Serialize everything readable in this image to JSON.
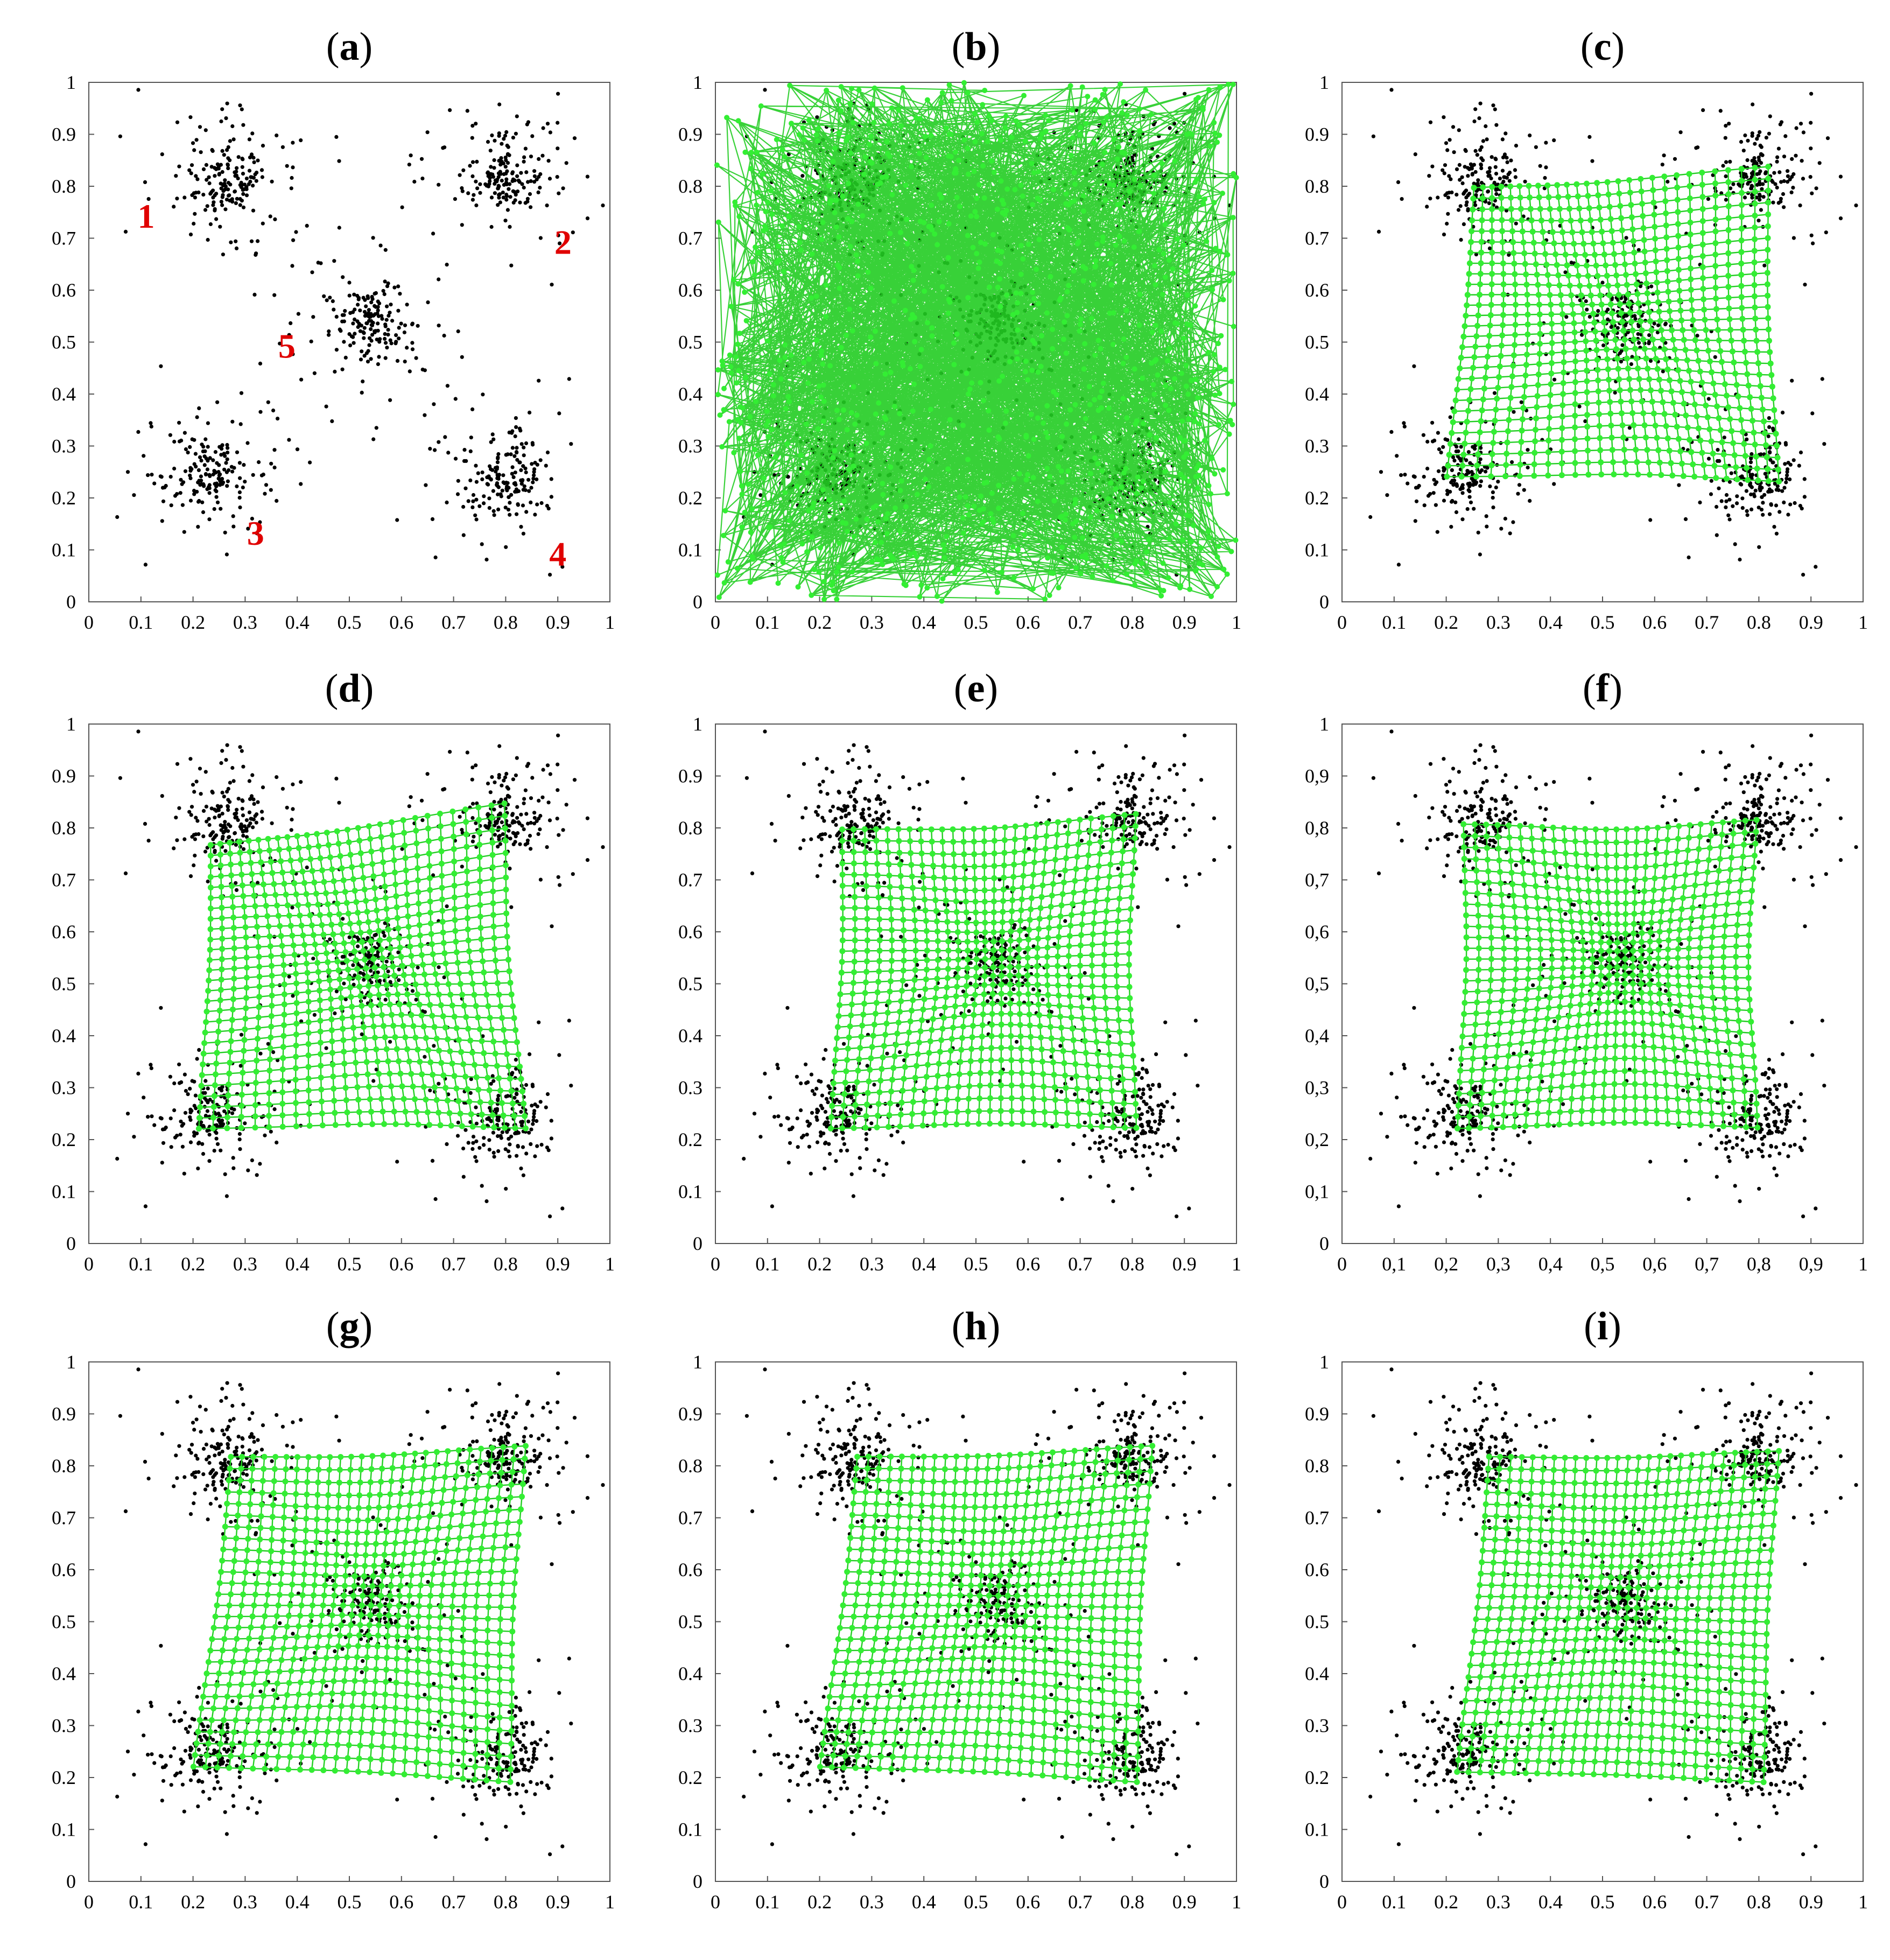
{
  "colors": {
    "data_points": "#000000",
    "network": "#22cc22",
    "network_nodes": "#33ee33",
    "cluster_labels": "#e00000"
  },
  "chart_data": [
    {
      "type": "scatter",
      "panel": "a",
      "label_parts": [
        "(",
        "a",
        ")"
      ],
      "xlim": [
        0,
        1
      ],
      "ylim": [
        0,
        1
      ],
      "x_ticks": [
        "0",
        "0.1",
        "0.2",
        "0.3",
        "0.4",
        "0.5",
        "0.6",
        "0.7",
        "0.8",
        "0.9",
        "1"
      ],
      "y_ticks": [
        "0",
        "0.1",
        "0.2",
        "0.3",
        "0.4",
        "0.5",
        "0.6",
        "0.7",
        "0.8",
        "0.9",
        "1"
      ],
      "clusters": [
        {
          "label": "1",
          "center": [
            0.27,
            0.81
          ],
          "label_pos": [
            0.11,
            0.72
          ]
        },
        {
          "label": "2",
          "center": [
            0.8,
            0.82
          ],
          "label_pos": [
            0.91,
            0.67
          ]
        },
        {
          "label": "3",
          "center": [
            0.23,
            0.25
          ],
          "label_pos": [
            0.32,
            0.11
          ]
        },
        {
          "label": "4",
          "center": [
            0.8,
            0.24
          ],
          "label_pos": [
            0.9,
            0.07
          ]
        },
        {
          "label": "5",
          "center": [
            0.54,
            0.54
          ],
          "label_pos": [
            0.38,
            0.47
          ]
        }
      ],
      "network": "none"
    },
    {
      "type": "scatter",
      "panel": "b",
      "label_parts": [
        "(",
        "b",
        ")"
      ],
      "xlim": [
        0,
        1
      ],
      "ylim": [
        0,
        1
      ],
      "x_ticks": [
        "0",
        "0.1",
        "0.2",
        "0.3",
        "0.4",
        "0.5",
        "0.6",
        "0.7",
        "0.8",
        "0.9",
        "1"
      ],
      "y_ticks": [
        "0",
        "0.1",
        "0.2",
        "0.3",
        "0.4",
        "0.5",
        "0.6",
        "0.7",
        "0.8",
        "0.9",
        "1"
      ],
      "network": "random",
      "grid_bounds": [
        0.0,
        1.0,
        0.0,
        1.0
      ]
    },
    {
      "type": "scatter",
      "panel": "c",
      "label_parts": [
        "(",
        "c",
        ")"
      ],
      "xlim": [
        0,
        1
      ],
      "ylim": [
        0,
        1
      ],
      "x_ticks": [
        "0",
        "0.1",
        "0.2",
        "0.3",
        "0.4",
        "0.5",
        "0.6",
        "0.7",
        "0.8",
        "0.9",
        "1"
      ],
      "y_ticks": [
        "0",
        "0.1",
        "0.2",
        "0.3",
        "0.4",
        "0.5",
        "0.6",
        "0.7",
        "0.8",
        "0.9",
        "1"
      ],
      "network": "grid",
      "grid_bounds": [
        0.19,
        0.85,
        0.22,
        0.84
      ],
      "warp": {
        "corners": [
          [
            0.25,
            0.8
          ],
          [
            0.82,
            0.84
          ],
          [
            0.2,
            0.24
          ],
          [
            0.84,
            0.23
          ]
        ],
        "pinch": 0.22,
        "skew": 0.12
      }
    },
    {
      "type": "scatter",
      "panel": "d",
      "label_parts": [
        "(",
        "d",
        ")"
      ],
      "xlim": [
        0,
        1
      ],
      "ylim": [
        0,
        1
      ],
      "x_ticks": [
        "0",
        "0.1",
        "0.2",
        "0.3",
        "0.4",
        "0.5",
        "0.6",
        "0.7",
        "0.8",
        "0.9",
        "1"
      ],
      "y_ticks": [
        "0",
        "0.1",
        "0.2",
        "0.3",
        "0.4",
        "0.5",
        "0.6",
        "0.7",
        "0.8",
        "0.9",
        "1"
      ],
      "network": "grid",
      "grid_bounds": [
        0.2,
        0.85,
        0.21,
        0.86
      ],
      "warp": {
        "corners": [
          [
            0.23,
            0.77
          ],
          [
            0.8,
            0.85
          ],
          [
            0.21,
            0.22
          ],
          [
            0.84,
            0.22
          ]
        ],
        "pinch": 0.24,
        "skew": 0.1
      }
    },
    {
      "type": "scatter",
      "panel": "e",
      "label_parts": [
        "(",
        "e",
        ")"
      ],
      "xlim": [
        0,
        1
      ],
      "ylim": [
        0,
        1
      ],
      "x_ticks": [
        "0",
        "0.1",
        "0.2",
        "0.3",
        "0.4",
        "0.5",
        "0.6",
        "0.7",
        "0.8",
        "0.9",
        "1"
      ],
      "y_ticks": [
        "0",
        "0.1",
        "0.2",
        "0.3",
        "0.4",
        "0.5",
        "0.6",
        "0.7",
        "0.8",
        "0.9",
        "1"
      ],
      "network": "grid",
      "grid_bounds": [
        0.21,
        0.83,
        0.21,
        0.85
      ],
      "warp": {
        "corners": [
          [
            0.24,
            0.8
          ],
          [
            0.81,
            0.83
          ],
          [
            0.22,
            0.22
          ],
          [
            0.81,
            0.22
          ]
        ],
        "pinch": 0.26,
        "skew": 0.0
      }
    },
    {
      "type": "scatter",
      "panel": "f",
      "label_parts": [
        "(",
        "f",
        ")"
      ],
      "xlim": [
        0,
        1
      ],
      "ylim": [
        0,
        1
      ],
      "x_ticks": [
        "0",
        "0,1",
        "0,2",
        "0,3",
        "0,4",
        "0,5",
        "0,6",
        "0,7",
        "0,8",
        "0,9",
        "1"
      ],
      "y_ticks": [
        "0",
        "0,1",
        "0,2",
        "0,3",
        "0,4",
        "0,5",
        "0,6",
        "0,7",
        "0,8",
        "0,9",
        "1"
      ],
      "network": "grid",
      "grid_bounds": [
        0.21,
        0.83,
        0.21,
        0.83
      ],
      "warp": {
        "corners": [
          [
            0.23,
            0.81
          ],
          [
            0.8,
            0.82
          ],
          [
            0.22,
            0.22
          ],
          [
            0.8,
            0.22
          ]
        ],
        "pinch": 0.3,
        "skew": 0.0
      }
    },
    {
      "type": "scatter",
      "panel": "g",
      "label_parts": [
        "(",
        "g",
        ")"
      ],
      "xlim": [
        0,
        1
      ],
      "ylim": [
        0,
        1
      ],
      "x_ticks": [
        "0",
        "0.1",
        "0.2",
        "0.3",
        "0.4",
        "0.5",
        "0.6",
        "0.7",
        "0.8",
        "0.9",
        "1"
      ],
      "y_ticks": [
        "0",
        "0.1",
        "0.2",
        "0.3",
        "0.4",
        "0.5",
        "0.6",
        "0.7",
        "0.8",
        "0.9",
        "1"
      ],
      "network": "grid",
      "grid_bounds": [
        0.17,
        0.88,
        0.14,
        0.88
      ],
      "warp": {
        "corners": [
          [
            0.27,
            0.82
          ],
          [
            0.84,
            0.84
          ],
          [
            0.2,
            0.22
          ],
          [
            0.81,
            0.19
          ]
        ],
        "pinch": 0.2,
        "skew": 0.0
      }
    },
    {
      "type": "scatter",
      "panel": "h",
      "label_parts": [
        "(",
        "h",
        ")"
      ],
      "xlim": [
        0,
        1
      ],
      "ylim": [
        0,
        1
      ],
      "x_ticks": [
        "0",
        "0.1",
        "0.2",
        "0.3",
        "0.4",
        "0.5",
        "0.6",
        "0.7",
        "0.8",
        "0.9",
        "1"
      ],
      "y_ticks": [
        "0",
        "0.1",
        "0.2",
        "0.3",
        "0.4",
        "0.5",
        "0.6",
        "0.7",
        "0.8",
        "0.9",
        "1"
      ],
      "network": "grid",
      "grid_bounds": [
        0.15,
        0.93,
        0.09,
        0.91
      ],
      "warp": {
        "corners": [
          [
            0.27,
            0.82
          ],
          [
            0.84,
            0.84
          ],
          [
            0.2,
            0.22
          ],
          [
            0.81,
            0.19
          ]
        ],
        "pinch": 0.18,
        "skew": 0.0
      }
    },
    {
      "type": "scatter",
      "panel": "i",
      "label_parts": [
        "(",
        "i",
        ")"
      ],
      "xlim": [
        0,
        1
      ],
      "ylim": [
        0,
        1
      ],
      "x_ticks": [
        "0",
        "0.1",
        "0.2",
        "0.3",
        "0.4",
        "0.5",
        "0.6",
        "0.7",
        "0.8",
        "0.9",
        "1"
      ],
      "y_ticks": [
        "0",
        "0.1",
        "0.2",
        "0.3",
        "0.4",
        "0.5",
        "0.6",
        "0.7",
        "0.8",
        "0.9",
        "1"
      ],
      "network": "grid",
      "grid_bounds": [
        0.12,
        0.95,
        0.06,
        0.93
      ],
      "warp": {
        "corners": [
          [
            0.28,
            0.82
          ],
          [
            0.84,
            0.83
          ],
          [
            0.22,
            0.21
          ],
          [
            0.81,
            0.19
          ]
        ],
        "pinch": 0.16,
        "skew": 0.0
      }
    }
  ]
}
